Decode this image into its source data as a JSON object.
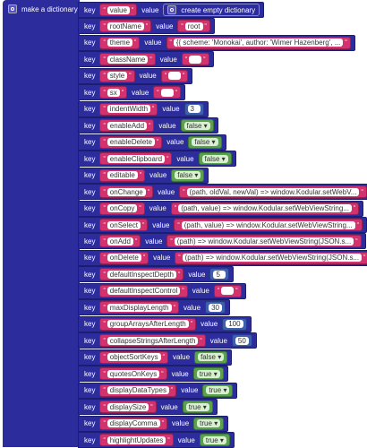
{
  "block": {
    "label": "make a dictionary",
    "key_label": "key",
    "value_label": "value",
    "rows": [
      {
        "key": "value",
        "kind": "dict",
        "value": "create empty dictionary"
      },
      {
        "key": "rootName",
        "kind": "text",
        "value": "root"
      },
      {
        "key": "theme",
        "kind": "text",
        "value": "{{ scheme: 'Monokai', author: 'Wimer Hazenberg', ..."
      },
      {
        "key": "className",
        "kind": "text"
      },
      {
        "key": "style",
        "kind": "text"
      },
      {
        "key": "sx",
        "kind": "text"
      },
      {
        "key": "indentWidth",
        "kind": "number",
        "value": 3
      },
      {
        "key": "enableAdd",
        "kind": "bool",
        "value": "false"
      },
      {
        "key": "enableDelete",
        "kind": "bool",
        "value": "false"
      },
      {
        "key": "enableClipboard",
        "kind": "bool",
        "value": "false"
      },
      {
        "key": "editable",
        "kind": "bool",
        "value": "false"
      },
      {
        "key": "onChange",
        "kind": "text",
        "value": "(path, oldVal, newVal) => window.Kodular.setWebV..."
      },
      {
        "key": "onCopy",
        "kind": "text",
        "value": "(path, value) => window.Kodular.setWebViewString..."
      },
      {
        "key": "onSelect",
        "kind": "text",
        "value": "(path, value) => window.Kodular.setWebViewString..."
      },
      {
        "key": "onAdd",
        "kind": "text",
        "value": "(path) => window.Kodular.setWebViewString(JSON.s..."
      },
      {
        "key": "onDelete",
        "kind": "text",
        "value": "(path) => window.Kodular.setWebViewString(JSON.s..."
      },
      {
        "key": "defaultInspectDepth",
        "kind": "number",
        "value": 5
      },
      {
        "key": "defaultInspectControl",
        "kind": "text"
      },
      {
        "key": "maxDisplayLength",
        "kind": "number",
        "value": 30
      },
      {
        "key": "groupArraysAfterLength",
        "kind": "number",
        "value": 100
      },
      {
        "key": "collapseStringsAfterLength",
        "kind": "number",
        "value": 50
      },
      {
        "key": "objectSortKeys",
        "kind": "bool",
        "value": "false"
      },
      {
        "key": "quotesOnKeys",
        "kind": "bool",
        "value": "true"
      },
      {
        "key": "displayDataTypes",
        "kind": "bool",
        "value": "true"
      },
      {
        "key": "displaySize",
        "kind": "bool",
        "value": "true"
      },
      {
        "key": "displayComma",
        "kind": "bool",
        "value": "true"
      },
      {
        "key": "highlightUpdates",
        "kind": "bool",
        "value": "true"
      }
    ]
  }
}
